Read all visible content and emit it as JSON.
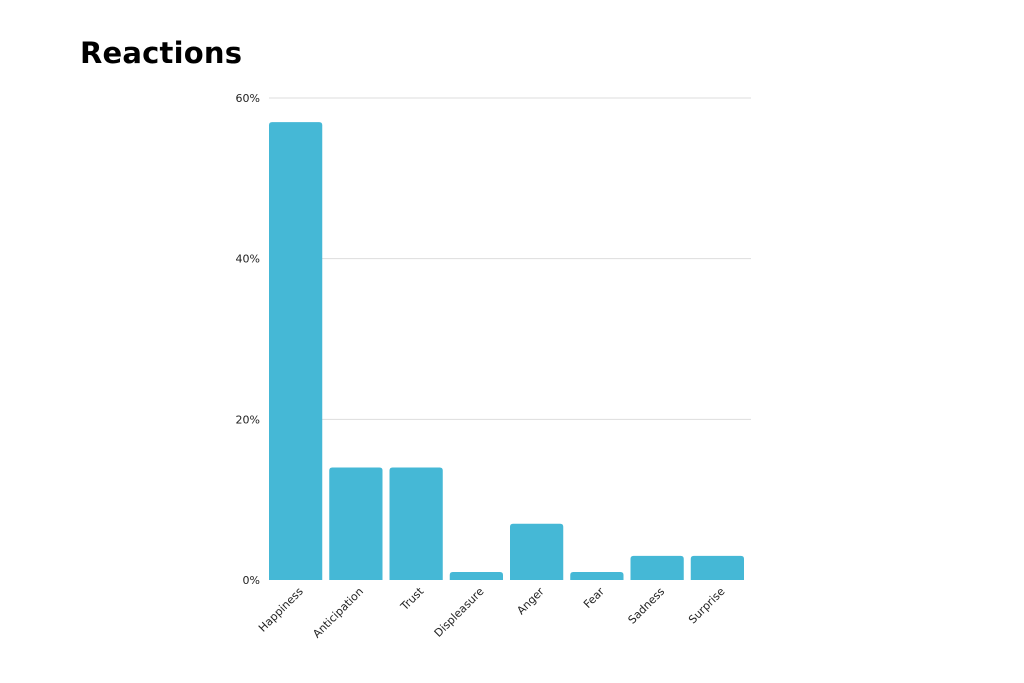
{
  "title": "Reactions",
  "chart_data": {
    "type": "bar",
    "title": "Reactions",
    "categories": [
      "Happiness",
      "Anticipation",
      "Trust",
      "Displeasure",
      "Anger",
      "Fear",
      "Sadness",
      "Surprise"
    ],
    "values": [
      57,
      14,
      14,
      1,
      7,
      1,
      3,
      3
    ],
    "unit": "%",
    "ylim": [
      0,
      60
    ],
    "yticks": [
      0,
      20,
      40,
      60
    ],
    "ytick_labels": [
      "0%",
      "20%",
      "40%",
      "60%"
    ],
    "grid": true,
    "bar_color": "#45B8D6",
    "grid_color": "#DDDDDD"
  }
}
